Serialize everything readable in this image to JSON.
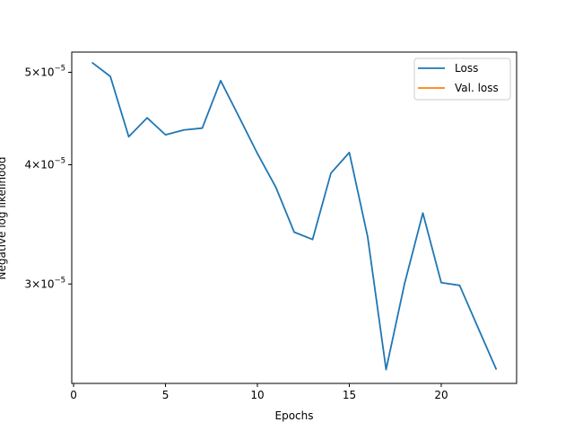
{
  "chart_data": {
    "type": "line",
    "xlabel": "Epochs",
    "ylabel": "Negative log likelihood",
    "yscale": "log",
    "xlim": [
      -0.1,
      24.1
    ],
    "ylim": [
      2.36e-05,
      5.25e-05
    ],
    "xticks": [
      0,
      5,
      10,
      15,
      20
    ],
    "yticks": [
      {
        "value": 3e-05,
        "mantissa": "3",
        "base": "10",
        "exp": "−5"
      },
      {
        "value": 4e-05,
        "mantissa": "4",
        "base": "10",
        "exp": "−5"
      },
      {
        "value": 5e-05,
        "mantissa": "5",
        "base": "10",
        "exp": "−5"
      }
    ],
    "legend_position": "top-right",
    "series": [
      {
        "name": "Loss",
        "color": "#1f77b4",
        "x": [
          1,
          2,
          3,
          4,
          5,
          6,
          7,
          8,
          9,
          10,
          11,
          12,
          13,
          14,
          15,
          16,
          17,
          18,
          19,
          20,
          21,
          22,
          23
        ],
        "y": [
          5.12e-05,
          4.95e-05,
          4.28e-05,
          4.48e-05,
          4.3e-05,
          4.35e-05,
          4.37e-05,
          4.9e-05,
          4.49e-05,
          4.11e-05,
          3.79e-05,
          3.4e-05,
          3.34e-05,
          3.92e-05,
          4.12e-05,
          3.36e-05,
          2.44e-05,
          3e-05,
          3.56e-05,
          3.01e-05,
          2.99e-05,
          2.7e-05,
          2.44e-05
        ]
      },
      {
        "name": "Val. loss",
        "color": "#ff7f0e",
        "x": [],
        "y": []
      }
    ]
  }
}
